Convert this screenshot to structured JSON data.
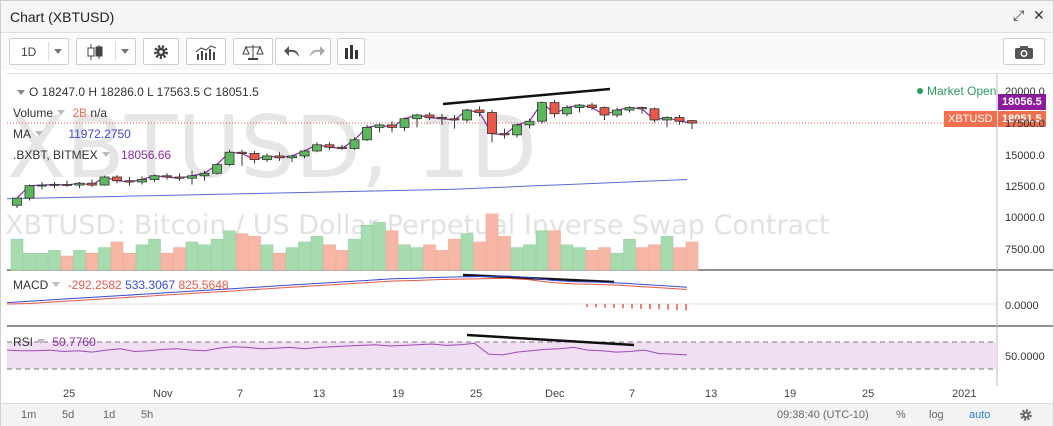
{
  "window": {
    "title": "Chart (XBTUSD)",
    "expand_glyph": "⤢",
    "close_glyph": "✕"
  },
  "toolbar": {
    "interval": "1D",
    "icons": [
      "candlestick-icon",
      "gear-icon",
      "indicators-icon",
      "compare-icon",
      "undo-icon",
      "redo-icon",
      "bars-icon",
      "camera-icon"
    ]
  },
  "header": {
    "ohlc_text": "O 18247.0 H 18286.0 L 17563.5 C 18051.5",
    "volume_label": "Volume",
    "volume_value": "2B",
    "volume_na": "n/a",
    "ma_label": "MA",
    "ma_value": "11972.2750",
    "bxbt_label": ".BXBT, BITMEX",
    "bxbt_value": "18056.66",
    "market_status": "Market Open",
    "macd_label": "MACD",
    "macd_values": [
      "-292.2582",
      "533.3067",
      "825.5648"
    ],
    "rsi_label": "RSI",
    "rsi_value": "50.7760"
  },
  "watermark": {
    "symbol": "XBTUSD, 1D",
    "description": "XBTUSD: Bitcoin / US Dollar Perpetual Inverse Swap Contract"
  },
  "price_tags": {
    "bxbt": "18056.5",
    "xbtusd_label": "XBTUSD",
    "xbtusd": "18051.5"
  },
  "colors": {
    "up": "#5cb85c",
    "down": "#e8594a",
    "ma": "#5b6bd6",
    "bxbt": "#8e2ca8",
    "tag_purple": "#8e1a9e",
    "tag_red": "#ef6f4e",
    "rsi_band": "#f1dff3"
  },
  "y_axis": {
    "price": [
      "20000.0",
      "17500.0",
      "15000.0",
      "12500.0",
      "10000.0",
      "7500.00"
    ],
    "macd": [
      "0.0000"
    ],
    "rsi": [
      "50.0000"
    ]
  },
  "x_axis": [
    "25",
    "Nov",
    "7",
    "13",
    "19",
    "25",
    "Dec",
    "7",
    "13",
    "19",
    "25",
    "2021"
  ],
  "bottom": {
    "ranges": [
      "1m",
      "5d",
      "1d",
      "5h"
    ],
    "time": "09:38:40 (UTC-10)",
    "percent": "%",
    "log": "log",
    "auto": "auto"
  },
  "chart_data": {
    "type": "candlestick",
    "ylim": [
      6200,
      21200
    ],
    "candles": [
      {
        "o": 11420,
        "h": 12000,
        "l": 11200,
        "c": 12000
      },
      {
        "o": 12000,
        "h": 13100,
        "l": 11800,
        "c": 13000
      },
      {
        "o": 13000,
        "h": 13300,
        "l": 12700,
        "c": 13050
      },
      {
        "o": 13050,
        "h": 13300,
        "l": 12800,
        "c": 13100
      },
      {
        "o": 13100,
        "h": 13400,
        "l": 12900,
        "c": 13050
      },
      {
        "o": 13050,
        "h": 13300,
        "l": 12800,
        "c": 13200
      },
      {
        "o": 13200,
        "h": 13500,
        "l": 12900,
        "c": 13050
      },
      {
        "o": 13050,
        "h": 13800,
        "l": 13000,
        "c": 13700
      },
      {
        "o": 13700,
        "h": 13850,
        "l": 13200,
        "c": 13400
      },
      {
        "o": 13400,
        "h": 13700,
        "l": 13000,
        "c": 13300
      },
      {
        "o": 13300,
        "h": 13750,
        "l": 13100,
        "c": 13500
      },
      {
        "o": 13500,
        "h": 13900,
        "l": 13300,
        "c": 13800
      },
      {
        "o": 13800,
        "h": 14000,
        "l": 13500,
        "c": 13700
      },
      {
        "o": 13700,
        "h": 14000,
        "l": 13400,
        "c": 13600
      },
      {
        "o": 13600,
        "h": 14200,
        "l": 13100,
        "c": 13800
      },
      {
        "o": 13800,
        "h": 14200,
        "l": 13400,
        "c": 14000
      },
      {
        "o": 14000,
        "h": 14800,
        "l": 13900,
        "c": 14700
      },
      {
        "o": 14700,
        "h": 15900,
        "l": 14600,
        "c": 15700
      },
      {
        "o": 15700,
        "h": 15900,
        "l": 14600,
        "c": 15600
      },
      {
        "o": 15600,
        "h": 15800,
        "l": 14800,
        "c": 15100
      },
      {
        "o": 15100,
        "h": 15600,
        "l": 14900,
        "c": 15400
      },
      {
        "o": 15400,
        "h": 15700,
        "l": 15000,
        "c": 15250
      },
      {
        "o": 15250,
        "h": 15500,
        "l": 14900,
        "c": 15400
      },
      {
        "o": 15400,
        "h": 15900,
        "l": 15200,
        "c": 15800
      },
      {
        "o": 15800,
        "h": 16500,
        "l": 15700,
        "c": 16300
      },
      {
        "o": 16300,
        "h": 16500,
        "l": 15900,
        "c": 16100
      },
      {
        "o": 16100,
        "h": 16300,
        "l": 15900,
        "c": 16000
      },
      {
        "o": 16000,
        "h": 16900,
        "l": 15900,
        "c": 16700
      },
      {
        "o": 16700,
        "h": 17900,
        "l": 16600,
        "c": 17700
      },
      {
        "o": 17700,
        "h": 18000,
        "l": 17300,
        "c": 17900
      },
      {
        "o": 17900,
        "h": 18200,
        "l": 17300,
        "c": 17700
      },
      {
        "o": 17700,
        "h": 18500,
        "l": 17400,
        "c": 18400
      },
      {
        "o": 18400,
        "h": 18800,
        "l": 17700,
        "c": 18700
      },
      {
        "o": 18700,
        "h": 18900,
        "l": 18300,
        "c": 18500
      },
      {
        "o": 18500,
        "h": 18800,
        "l": 17900,
        "c": 18400
      },
      {
        "o": 18400,
        "h": 18700,
        "l": 17600,
        "c": 18300
      },
      {
        "o": 18300,
        "h": 19200,
        "l": 18100,
        "c": 19100
      },
      {
        "o": 19100,
        "h": 19400,
        "l": 18600,
        "c": 18900
      },
      {
        "o": 18900,
        "h": 19100,
        "l": 16500,
        "c": 17200
      },
      {
        "o": 17200,
        "h": 17600,
        "l": 16800,
        "c": 17100
      },
      {
        "o": 17100,
        "h": 18000,
        "l": 16900,
        "c": 17900
      },
      {
        "o": 17900,
        "h": 18400,
        "l": 17600,
        "c": 18200
      },
      {
        "o": 18200,
        "h": 19800,
        "l": 18000,
        "c": 19700
      },
      {
        "o": 19700,
        "h": 19900,
        "l": 18500,
        "c": 18800
      },
      {
        "o": 18800,
        "h": 19500,
        "l": 18600,
        "c": 19300
      },
      {
        "o": 19300,
        "h": 19600,
        "l": 18900,
        "c": 19500
      },
      {
        "o": 19500,
        "h": 19700,
        "l": 19100,
        "c": 19300
      },
      {
        "o": 19300,
        "h": 19400,
        "l": 18300,
        "c": 18700
      },
      {
        "o": 18700,
        "h": 19300,
        "l": 18500,
        "c": 19100
      },
      {
        "o": 19100,
        "h": 19400,
        "l": 18900,
        "c": 19300
      },
      {
        "o": 19300,
        "h": 19400,
        "l": 18800,
        "c": 19200
      },
      {
        "o": 19200,
        "h": 19300,
        "l": 18100,
        "c": 18300
      },
      {
        "o": 18300,
        "h": 18600,
        "l": 17700,
        "c": 18500
      },
      {
        "o": 18500,
        "h": 18700,
        "l": 17900,
        "c": 18200
      },
      {
        "o": 18247,
        "h": 18286,
        "l": 17563.5,
        "c": 18051.5
      }
    ],
    "volumes": [
      0.55,
      0.3,
      0.3,
      0.35,
      0.25,
      0.35,
      0.3,
      0.4,
      0.5,
      0.3,
      0.45,
      0.55,
      0.3,
      0.4,
      0.5,
      0.45,
      0.55,
      0.7,
      0.65,
      0.6,
      0.45,
      0.3,
      0.4,
      0.5,
      0.6,
      0.45,
      0.35,
      0.55,
      0.8,
      0.85,
      0.7,
      0.45,
      0.4,
      0.45,
      0.35,
      0.55,
      0.65,
      0.5,
      1.0,
      0.6,
      0.4,
      0.45,
      0.7,
      0.7,
      0.45,
      0.4,
      0.35,
      0.4,
      0.3,
      0.55,
      0.4,
      0.45,
      0.6,
      0.4,
      0.5
    ],
    "ma_line": [
      11950,
      12000,
      12050,
      12100,
      12150,
      12200,
      12250,
      12300,
      12350,
      12400,
      12450,
      12500,
      12550,
      12600,
      12650,
      12700,
      12800,
      12900,
      13000,
      13100,
      13200,
      13300,
      13400,
      13500
    ],
    "macd_line": [
      0.05,
      0.1,
      0.15,
      0.2,
      0.25,
      0.3,
      0.35,
      0.4,
      0.45,
      0.5,
      0.55,
      0.6,
      0.65,
      0.7,
      0.75,
      0.8,
      0.85,
      0.9,
      0.92,
      0.95,
      0.97,
      0.98,
      1.0,
      0.95,
      0.85,
      0.8,
      0.78,
      0.75,
      0.7,
      0.65,
      0.6
    ],
    "rsi_line": [
      58,
      57,
      57,
      58,
      56,
      57,
      55,
      58,
      60,
      56,
      57,
      59,
      60,
      58,
      57,
      61,
      63,
      62,
      60,
      61,
      62,
      60,
      62,
      63,
      64,
      65,
      66,
      64,
      65,
      66,
      67,
      65,
      66,
      68,
      52,
      51,
      55,
      57,
      59,
      60,
      62,
      58,
      57,
      55,
      56,
      58,
      53,
      52,
      51
    ]
  }
}
